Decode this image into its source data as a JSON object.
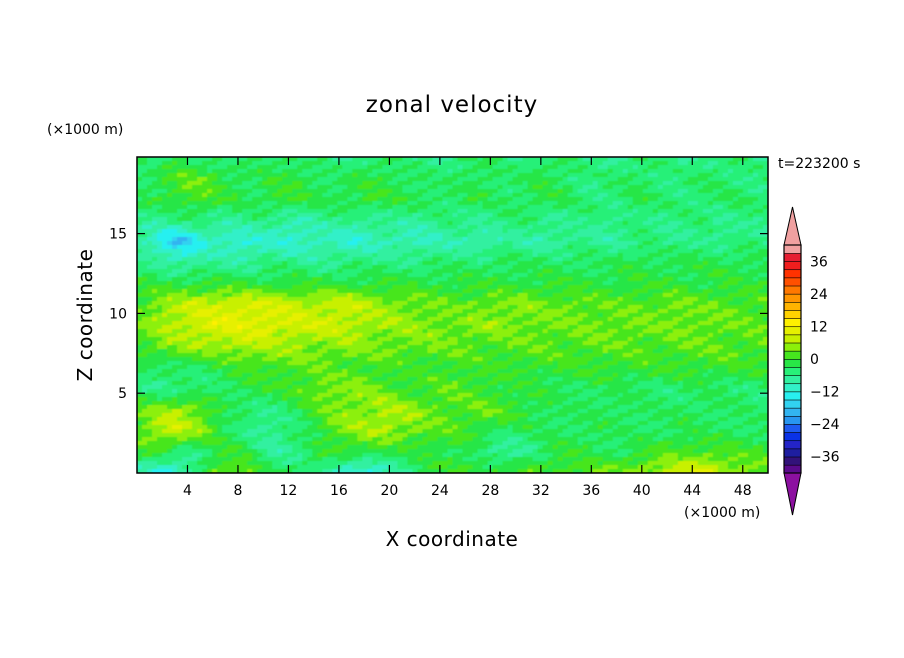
{
  "chart_data": {
    "type": "heatmap",
    "title": "zonal velocity",
    "xlabel": "X coordinate",
    "ylabel": "Z coordinate",
    "x_unit": "(×1000 m)",
    "y_unit": "(×1000 m)",
    "time_label": "t=223200 s",
    "xlim": [
      0,
      50
    ],
    "ylim": [
      0,
      19.8
    ],
    "x_ticks": [
      4,
      8,
      12,
      16,
      20,
      24,
      28,
      32,
      36,
      40,
      44,
      48
    ],
    "y_ticks": [
      5,
      10,
      15
    ],
    "colorbar": {
      "levels": [
        -42,
        -39,
        -36,
        -33,
        -30,
        -27,
        -24,
        -21,
        -18,
        -15,
        -12,
        -9,
        -6,
        -3,
        0,
        3,
        6,
        9,
        12,
        15,
        18,
        21,
        24,
        27,
        30,
        33,
        36,
        39,
        42
      ],
      "tick_labels": [
        "36",
        "24",
        "12",
        "0",
        "−12",
        "−24",
        "−36"
      ],
      "tick_values": [
        36,
        24,
        12,
        0,
        -12,
        -24,
        -36
      ],
      "colors": [
        "#5a0a8c",
        "#32127a",
        "#1e1ea0",
        "#2424c8",
        "#0a32e6",
        "#1e5af0",
        "#2896f0",
        "#32b4f0",
        "#32d2f0",
        "#28f0f0",
        "#32f0c8",
        "#32f0a0",
        "#28f078",
        "#28e646",
        "#46e61e",
        "#8cf00a",
        "#c8f000",
        "#e6f000",
        "#fff000",
        "#ffd200",
        "#ffb400",
        "#ff9600",
        "#ff7800",
        "#ff5000",
        "#ff3200",
        "#f01e1e",
        "#e61e32",
        "#f0a0a0"
      ],
      "under_color": "#8c10a0",
      "over_color": "#f0a0a0"
    },
    "field_rows": [
      [
        -3,
        -6,
        -4,
        -2,
        -3,
        -4,
        -5,
        -6,
        -5,
        -3,
        -2,
        -3,
        -4,
        -4,
        -5,
        -6,
        -6,
        -5,
        -4,
        -3,
        -4,
        -5,
        -6,
        -6,
        -5,
        -4,
        -3,
        -3,
        -4,
        -5,
        -5,
        -4,
        -3,
        -3,
        -4,
        -5,
        -6,
        -6,
        -5,
        -4,
        -4,
        -5,
        -6,
        -6,
        -5,
        -4,
        -4,
        -5,
        -6,
        -6
      ],
      [
        -3,
        -3,
        -1,
        1,
        2,
        2,
        1,
        -1,
        -2,
        -3,
        -2,
        -1,
        0,
        -1,
        -2,
        -3,
        -3,
        -2,
        -1,
        -1,
        -2,
        -3,
        -3,
        -4,
        -4,
        -3,
        -2,
        -2,
        -3,
        -4,
        -3,
        -2,
        -2,
        -3,
        -4,
        -5,
        -5,
        -4,
        -3,
        -3,
        -4,
        -5,
        -5,
        -4,
        -3,
        -3,
        -4,
        -4,
        -5,
        -5
      ],
      [
        -3,
        -2,
        -1,
        0,
        1,
        1,
        0,
        -1,
        -2,
        -2,
        -1,
        0,
        0,
        -1,
        -2,
        -2,
        -1,
        -1,
        0,
        -1,
        -1,
        -2,
        -2,
        -3,
        -3,
        -3,
        -2,
        -2,
        -3,
        -3,
        -3,
        -2,
        -2,
        -2,
        -3,
        -4,
        -4,
        -4,
        -3,
        -2,
        -3,
        -3,
        -4,
        -4,
        -3,
        -3,
        -3,
        -3,
        -4,
        -4
      ],
      [
        -5,
        -6,
        -6,
        -5,
        -4,
        -5,
        -6,
        -7,
        -6,
        -5,
        -6,
        -7,
        -8,
        -8,
        -7,
        -6,
        -6,
        -7,
        -7,
        -6,
        -6,
        -7,
        -7,
        -6,
        -5,
        -5,
        -6,
        -6,
        -5,
        -4,
        -4,
        -5,
        -6,
        -6,
        -5,
        -5,
        -6,
        -6,
        -5,
        -4,
        -5,
        -6,
        -6,
        -5,
        -5,
        -6,
        -6,
        -5,
        -5,
        -6
      ],
      [
        -8,
        -10,
        -14,
        -18,
        -17,
        -12,
        -10,
        -11,
        -12,
        -11,
        -10,
        -11,
        -12,
        -11,
        -10,
        -10,
        -11,
        -11,
        -10,
        -9,
        -9,
        -10,
        -10,
        -9,
        -8,
        -8,
        -9,
        -9,
        -8,
        -7,
        -7,
        -8,
        -8,
        -7,
        -6,
        -6,
        -7,
        -7,
        -6,
        -5,
        -5,
        -6,
        -6,
        -5,
        -5,
        -6,
        -6,
        -5,
        -5,
        -6
      ],
      [
        -5,
        -6,
        -7,
        -8,
        -8,
        -7,
        -6,
        -6,
        -7,
        -7,
        -6,
        -5,
        -5,
        -6,
        -6,
        -6,
        -5,
        -5,
        -5,
        -5,
        -5,
        -5,
        -5,
        -4,
        -4,
        -4,
        -4,
        -4,
        -3,
        -3,
        -3,
        -3,
        -3,
        -3,
        -3,
        -3,
        -3,
        -3,
        -2,
        -2,
        -2,
        -2,
        -2,
        -2,
        -2,
        -2,
        -2,
        -2,
        -2,
        -2
      ],
      [
        -1,
        -1,
        -1,
        -1,
        -1,
        -1,
        -1,
        -1,
        -1,
        -1,
        -1,
        -1,
        -1,
        -1,
        -1,
        -1,
        -1,
        -1,
        -1,
        -1,
        -1,
        -1,
        -1,
        -1,
        -1,
        -1,
        -1,
        -1,
        -1,
        -1,
        -1,
        -1,
        -1,
        -1,
        -1,
        -1,
        -1,
        -1,
        -1,
        -1,
        -1,
        -1,
        -1,
        -1,
        -1,
        -1,
        -1,
        -1,
        -1,
        -1
      ],
      [
        1,
        3,
        5,
        6,
        7,
        8,
        8,
        9,
        9,
        9,
        9,
        8,
        8,
        7,
        7,
        8,
        8,
        7,
        6,
        5,
        5,
        4,
        3,
        3,
        2,
        2,
        3,
        3,
        4,
        4,
        4,
        3,
        3,
        3,
        3,
        2,
        2,
        2,
        2,
        2,
        2,
        3,
        3,
        3,
        2,
        2,
        2,
        2,
        2,
        2
      ],
      [
        2,
        4,
        6,
        7,
        8,
        9,
        10,
        10,
        10,
        10,
        10,
        9,
        9,
        8,
        8,
        8,
        8,
        7,
        6,
        5,
        5,
        4,
        4,
        4,
        3,
        3,
        4,
        4,
        4,
        4,
        3,
        3,
        3,
        3,
        3,
        3,
        3,
        3,
        3,
        3,
        3,
        3,
        3,
        3,
        3,
        3,
        2,
        2,
        2,
        2
      ],
      [
        1,
        2,
        3,
        4,
        4,
        5,
        5,
        6,
        6,
        6,
        6,
        5,
        5,
        5,
        4,
        4,
        4,
        4,
        3,
        3,
        3,
        3,
        3,
        3,
        3,
        2,
        2,
        2,
        2,
        2,
        2,
        2,
        2,
        2,
        2,
        2,
        2,
        2,
        2,
        2,
        2,
        2,
        2,
        2,
        2,
        2,
        2,
        2,
        2,
        2
      ],
      [
        -3,
        -4,
        -4,
        -3,
        -3,
        -3,
        -2,
        -1,
        0,
        1,
        1,
        2,
        2,
        2,
        2,
        1,
        1,
        1,
        1,
        1,
        0,
        0,
        0,
        0,
        0,
        0,
        0,
        0,
        0,
        0,
        0,
        0,
        0,
        0,
        0,
        0,
        0,
        0,
        0,
        0,
        0,
        0,
        0,
        0,
        0,
        0,
        0,
        0,
        0,
        0
      ],
      [
        -4,
        -5,
        -6,
        -6,
        -5,
        -5,
        -4,
        -3,
        -2,
        -1,
        -1,
        0,
        1,
        2,
        3,
        4,
        4,
        4,
        3,
        2,
        1,
        0,
        0,
        1,
        2,
        2,
        1,
        0,
        -1,
        -1,
        -2,
        -2,
        -2,
        -3,
        -3,
        -3,
        -3,
        -3,
        -3,
        -3,
        -4,
        -4,
        -4,
        -3,
        -3,
        -3,
        -4,
        -4,
        -4,
        -4
      ],
      [
        1,
        3,
        5,
        6,
        5,
        3,
        0,
        -3,
        -4,
        -5,
        -5,
        -4,
        -3,
        -1,
        1,
        3,
        4,
        5,
        5,
        6,
        6,
        5,
        4,
        3,
        2,
        2,
        2,
        3,
        2,
        1,
        0,
        -1,
        -2,
        -3,
        -3,
        -3,
        -3,
        -2,
        -2,
        -3,
        -3,
        -3,
        -3,
        -3,
        -3,
        -3,
        -3,
        -3,
        -4,
        -4
      ],
      [
        2,
        5,
        7,
        8,
        6,
        4,
        1,
        -2,
        -4,
        -6,
        -7,
        -6,
        -5,
        -3,
        -1,
        1,
        3,
        4,
        5,
        6,
        5,
        4,
        3,
        2,
        1,
        1,
        0,
        -1,
        -2,
        -3,
        -3,
        -3,
        -3,
        -3,
        -3,
        -2,
        -2,
        -3,
        -3,
        -3,
        -3,
        -3,
        -2,
        -2,
        -3,
        -3,
        -3,
        -3,
        -3,
        -3
      ],
      [
        -1,
        0,
        -1,
        -3,
        -5,
        -4,
        -2,
        -1,
        -1,
        -3,
        -6,
        -7,
        -6,
        -4,
        -2,
        -1,
        0,
        0,
        -1,
        -1,
        -2,
        -2,
        -2,
        -1,
        -1,
        -2,
        -3,
        -5,
        -7,
        -7,
        -6,
        -4,
        -2,
        -1,
        -1,
        -2,
        -3,
        -3,
        -2,
        -1,
        0,
        1,
        1,
        1,
        2,
        2,
        1,
        1,
        0,
        0
      ],
      [
        -8,
        -12,
        -14,
        -12,
        -8,
        -3,
        2,
        4,
        4,
        2,
        -1,
        -3,
        -3,
        -2,
        -4,
        -8,
        -12,
        -14,
        -13,
        -11,
        -9,
        -6,
        -3,
        -1,
        0,
        1,
        1,
        1,
        0,
        0,
        1,
        1,
        1,
        1,
        2,
        3,
        3,
        3,
        4,
        5,
        6,
        7,
        8,
        9,
        9,
        8,
        6,
        5,
        4,
        3
      ]
    ]
  }
}
